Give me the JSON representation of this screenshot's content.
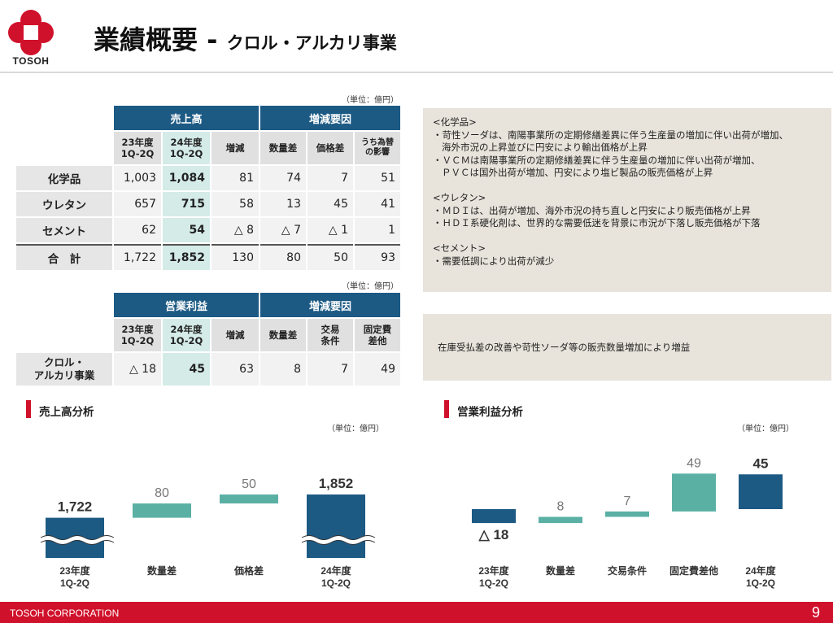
{
  "header": {
    "logo_text": "TOSOH",
    "title_main": "業績概要 - ",
    "title_sub": "クロル・アルカリ事業"
  },
  "colors": {
    "brand_red": "#d0112b",
    "navy": "#1c5a84",
    "teal": "#5bb0a4",
    "comment_bg": "#e8e3db"
  },
  "sales_table": {
    "unit": "（単位：億円）",
    "group_sales": "売上高",
    "group_factors": "増減要因",
    "col_23": "23年度\n1Q-2Q",
    "col_24": "24年度\n1Q-2Q",
    "col_change": "増減",
    "col_volume": "数量差",
    "col_price": "価格差",
    "col_fx": "うち為替\nの影響",
    "rows": [
      {
        "label": "化学品",
        "v23": "1,003",
        "v24": "1,084",
        "chg": "81",
        "vol": "74",
        "price": "7",
        "fx": "51"
      },
      {
        "label": "ウレタン",
        "v23": "657",
        "v24": "715",
        "chg": "58",
        "vol": "13",
        "price": "45",
        "fx": "41"
      },
      {
        "label": "セメント",
        "v23": "62",
        "v24": "54",
        "chg": "△ 8",
        "vol": "△ 7",
        "price": "△ 1",
        "fx": "1"
      },
      {
        "label": "合　計",
        "v23": "1,722",
        "v24": "1,852",
        "chg": "130",
        "vol": "80",
        "price": "50",
        "fx": "93"
      }
    ]
  },
  "op_table": {
    "unit": "（単位：億円）",
    "group_profit": "営業利益",
    "group_factors": "増減要因",
    "col_23": "23年度\n1Q-2Q",
    "col_24": "24年度\n1Q-2Q",
    "col_change": "増減",
    "col_volume": "数量差",
    "col_terms": "交易\n条件",
    "col_fixed": "固定費\n差他",
    "row": {
      "label": "クロル・\nアルカリ事業",
      "v23": "△ 18",
      "v24": "45",
      "chg": "63",
      "vol": "8",
      "terms": "7",
      "fixed": "49"
    }
  },
  "comments": {
    "sales": "<化学品>\n・苛性ソーダは、南陽事業所の定期修繕差異に伴う生産量の増加に伴い出荷が増加、\n   海外市況の上昇並びに円安により輸出価格が上昇\n・ＶＣＭは南陽事業所の定期修繕差異に伴う生産量の増加に伴い出荷が増加、\n   ＰＶＣは国外出荷が増加、円安により塩ビ製品の販売価格が上昇\n\n<ウレタン>\n・ＭＤＩは、出荷が増加、海外市況の持ち直しと円安により販売価格が上昇\n・ＨＤＩ系硬化剤は、世界的な需要低迷を背景に市況が下落し販売価格が下落\n\n<セメント>\n・需要低調により出荷が減少",
    "op": "在庫受払差の改善や苛性ソーダ等の販売数量増加により増益"
  },
  "sections": {
    "sales_title": "売上高分析",
    "op_title": "営業利益分析",
    "sales_unit": "（単位：億円）",
    "op_unit": "（単位：億円）"
  },
  "chart_data": [
    {
      "type": "bar",
      "subtype": "waterfall",
      "title": "売上高分析",
      "unit": "（単位：億円）",
      "categories": [
        "23年度\n1Q-2Q",
        "数量差",
        "価格差",
        "24年度\n1Q-2Q"
      ],
      "values": [
        1722,
        80,
        50,
        1852
      ],
      "labels": [
        "1,722",
        "80",
        "50",
        "1,852"
      ],
      "kinds": [
        "total",
        "delta",
        "delta",
        "total"
      ],
      "axis_break": true
    },
    {
      "type": "bar",
      "subtype": "waterfall",
      "title": "営業利益分析",
      "unit": "（単位：億円）",
      "categories": [
        "23年度\n1Q-2Q",
        "数量差",
        "交易条件",
        "固定費差他",
        "24年度\n1Q-2Q"
      ],
      "values": [
        -18,
        8,
        7,
        49,
        45
      ],
      "labels": [
        "△ 18",
        "8",
        "7",
        "49",
        "45"
      ],
      "kinds": [
        "total",
        "delta",
        "delta",
        "delta",
        "total"
      ]
    }
  ],
  "footer": {
    "company": "TOSOH CORPORATION",
    "page": "9"
  }
}
